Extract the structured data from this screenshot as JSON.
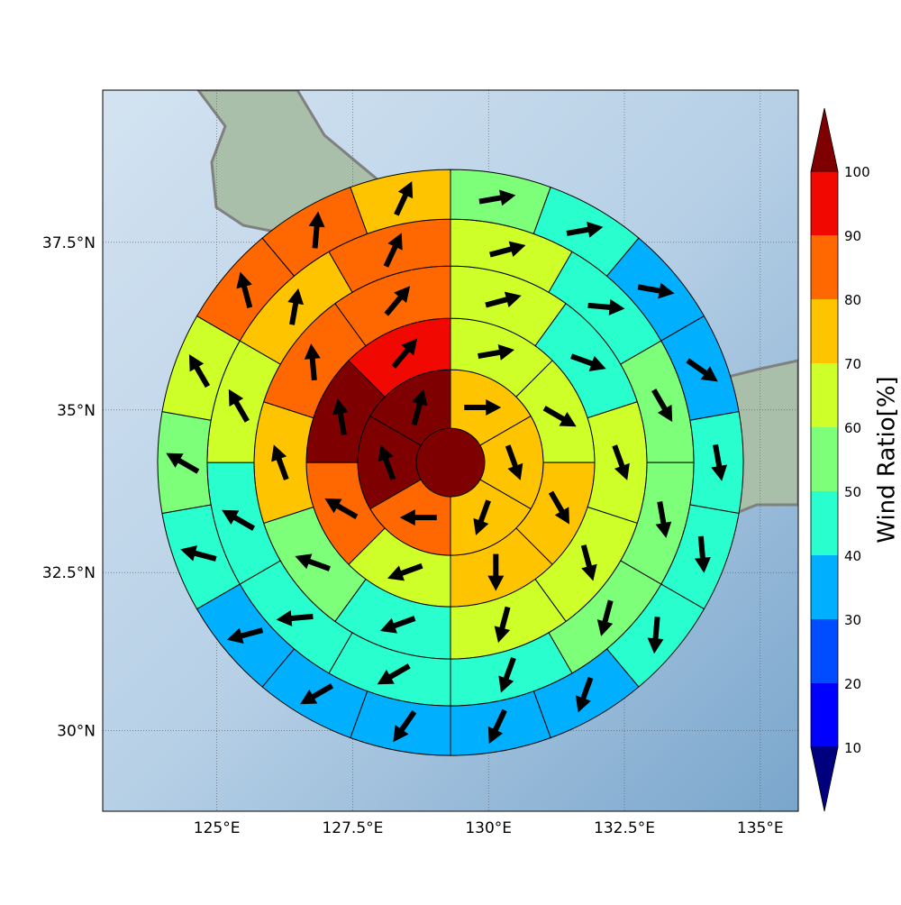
{
  "chart_data": {
    "type": "polar-sector-map",
    "xlim": [
      122.9,
      135.7
    ],
    "ylim": [
      28.7,
      39.7
    ],
    "xticks": [
      {
        "value": 125,
        "label": "125°E"
      },
      {
        "value": 127.5,
        "label": "127.5°E"
      },
      {
        "value": 130,
        "label": "130°E"
      },
      {
        "value": 132.5,
        "label": "132.5°E"
      },
      {
        "value": 135,
        "label": "135°E"
      }
    ],
    "yticks": [
      {
        "value": 30,
        "label": "30°N"
      },
      {
        "value": 32.5,
        "label": "32.5°N"
      },
      {
        "value": 35,
        "label": "35°N"
      },
      {
        "value": 37.5,
        "label": "37.5°N"
      }
    ],
    "grid": true,
    "center": [
      129.3,
      34.2
    ],
    "rings": [
      {
        "values": [
          105
        ]
      },
      {
        "values": [
          72,
          75,
          78,
          85,
          102,
          103
        ],
        "directions": [
          90,
          160,
          200,
          270,
          340,
          15
        ]
      },
      {
        "values": [
          68,
          65,
          72,
          75,
          62,
          88,
          102,
          92
        ],
        "directions": [
          80,
          120,
          150,
          180,
          250,
          300,
          350,
          40
        ]
      },
      {
        "values": [
          65,
          45,
          65,
          62,
          60,
          48,
          55,
          75,
          88,
          82
        ],
        "directions": [
          75,
          110,
          160,
          165,
          195,
          250,
          290,
          340,
          355,
          40
        ]
      },
      {
        "values": [
          62,
          45,
          55,
          58,
          55,
          45,
          42,
          45,
          48,
          65,
          75,
          85
        ],
        "directions": [
          75,
          95,
          150,
          170,
          195,
          200,
          240,
          265,
          300,
          330,
          10,
          25
        ]
      },
      {
        "values": [
          55,
          45,
          35,
          35,
          45,
          45,
          42,
          35,
          35,
          35,
          35,
          35,
          45,
          55,
          62,
          80,
          88,
          72
        ],
        "directions": [
          80,
          80,
          100,
          125,
          170,
          175,
          185,
          200,
          205,
          215,
          240,
          255,
          285,
          300,
          330,
          345,
          5,
          25
        ]
      }
    ],
    "colorbar": {
      "label": "Wind Ratio[%]",
      "ticks": [
        10,
        20,
        30,
        40,
        50,
        60,
        70,
        80,
        90,
        100
      ],
      "colors": [
        "#00007f",
        "#0000ff",
        "#004cff",
        "#00b0ff",
        "#29ffce",
        "#7dff7a",
        "#ceff29",
        "#ffc400",
        "#ff6800",
        "#f10800",
        "#7f0000"
      ]
    }
  }
}
